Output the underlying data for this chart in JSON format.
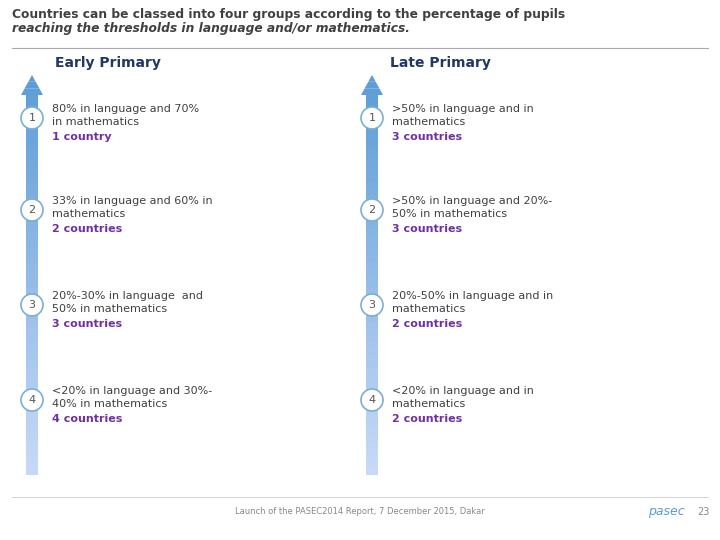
{
  "title_line1": "Countries can be classed into four groups according to the percentage of pupils",
  "title_line2": "reaching the thresholds in language and/or mathematics.",
  "col_headers": [
    "Early Primary",
    "Late Primary"
  ],
  "rows": [
    {
      "num": "1",
      "left_text": "80% in language and 70%\nin mathematics",
      "left_count": "1 country",
      "right_text": ">50% in language and in\nmathematics",
      "right_count": "3 countries"
    },
    {
      "num": "2",
      "left_text": "33% in language and 60% in\nmathematics",
      "left_count": "2 countries",
      "right_text": ">50% in language and 20%-\n50% in mathematics",
      "right_count": "3 countries"
    },
    {
      "num": "3",
      "left_text": "20%-30% in language  and\n50% in mathematics",
      "left_count": "3 countries",
      "right_text": "20%-50% in language and in\nmathematics",
      "right_count": "2 countries"
    },
    {
      "num": "4",
      "left_text": "<20% in language and 30%-\n40% in mathematics",
      "left_count": "4 countries",
      "right_text": "<20% in language and in\nmathematics",
      "right_count": "2 countries"
    }
  ],
  "arrow_color_top": "#5b9bd5",
  "arrow_color_bottom": "#c9daf8",
  "circle_bg": "#ffffff",
  "circle_edge": "#7bafd4",
  "num_color": "#555555",
  "text_color": "#404040",
  "count_color": "#7030a0",
  "header_color": "#1f3864",
  "title_color": "#404040",
  "footer_text": "Launch of the PASEC2014 Report, 7 December 2015, Dakar",
  "footer_pasec": "pasec",
  "footer_num": "23",
  "bg_color": "#ffffff"
}
